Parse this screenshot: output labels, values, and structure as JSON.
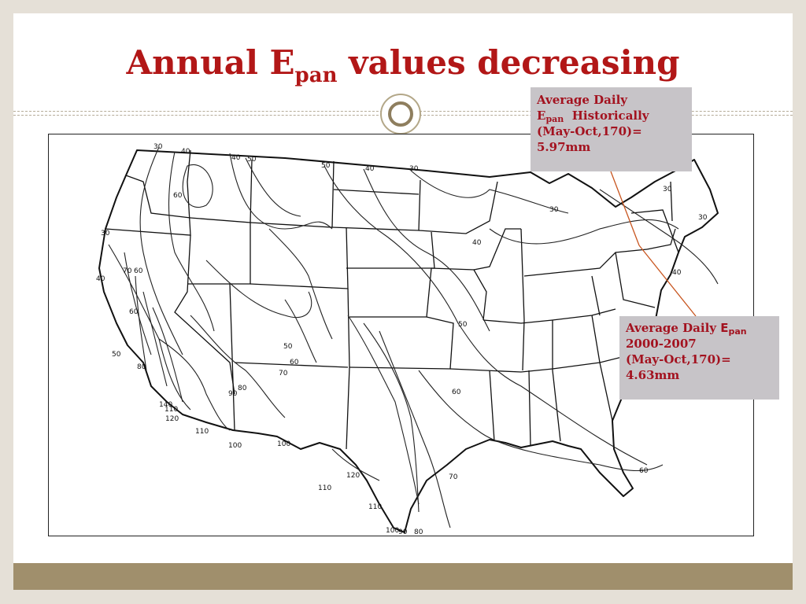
{
  "title": {
    "main": "Annual E",
    "sub": "pan",
    "rest": " values decreasing"
  },
  "callout_historical": {
    "line1": "Average Daily",
    "e_main": "E",
    "e_sub": "pan",
    "line2_rest": "  Historically",
    "line3": "(May-Oct,170)=",
    "line4": "5.97mm"
  },
  "callout_recent": {
    "line1": "Average Daily ",
    "e_main": "E",
    "e_sub": "pan",
    "line2": "2000-2007",
    "line3": "(May-Oct,170)=",
    "line4": "4.63mm"
  },
  "map": {
    "contour_labels": [
      "30",
      "40",
      "60",
      "40",
      "50",
      "50",
      "40",
      "30",
      "30",
      "30",
      "30",
      "40",
      "70",
      "60",
      "40",
      "50",
      "60",
      "60",
      "70",
      "50",
      "50",
      "80",
      "80",
      "90",
      "110",
      "120",
      "110",
      "100",
      "100",
      "110",
      "120",
      "110",
      "100",
      "90",
      "80",
      "70",
      "60",
      "30",
      "40",
      "60",
      "140"
    ]
  },
  "colors": {
    "title": "#b21717",
    "callout_text": "#a3121f",
    "callout_bg": "#c7c4c8",
    "footer": "#a08f6c",
    "leader": "#c8551f"
  }
}
